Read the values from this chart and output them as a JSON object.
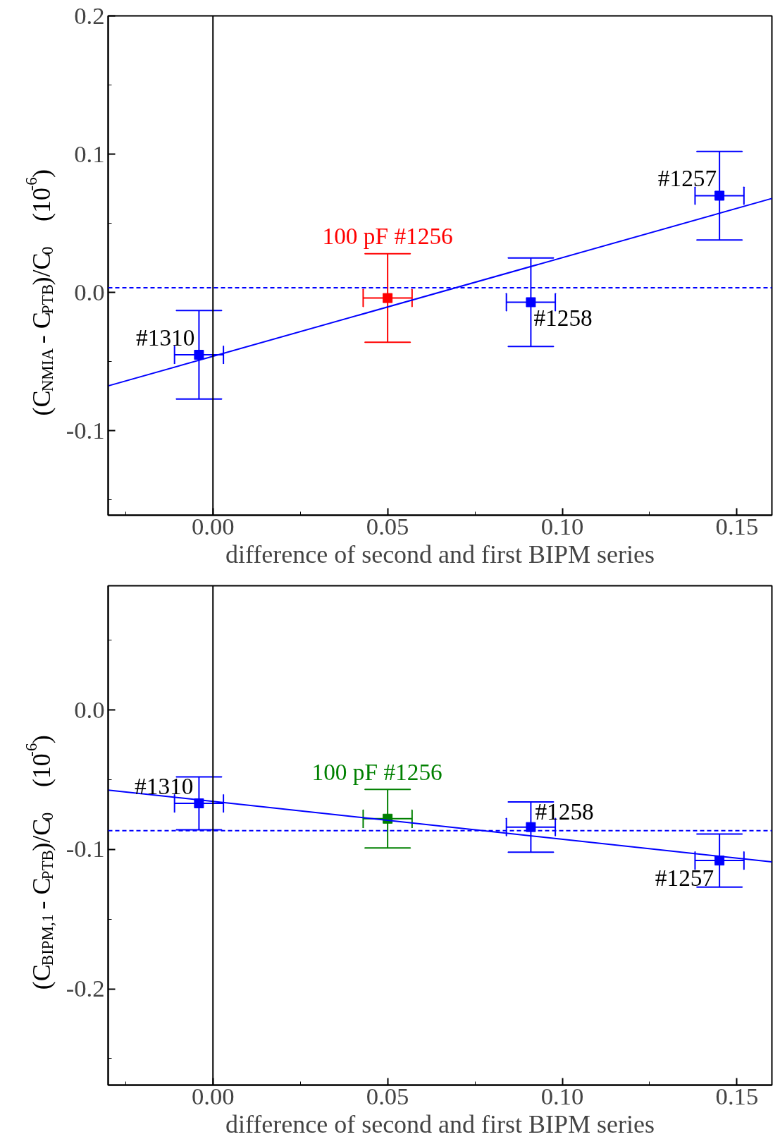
{
  "chart_data": [
    {
      "type": "scatter",
      "xlabel": "difference of second and first BIPM series",
      "ylabel": "(C$_{NMIA}$ - C$_{PTB}$)/C$_{0}$    (10$^{-6}$)",
      "xlim": [
        -0.03,
        0.16
      ],
      "ylim": [
        -0.161,
        0.2
      ],
      "xticks": [
        {
          "value": 0,
          "label": "0.00"
        },
        {
          "value": 0.05,
          "label": "0.05"
        },
        {
          "value": 0.1,
          "label": "0.10"
        },
        {
          "value": 0.15,
          "label": "0.15"
        }
      ],
      "yticks": [
        {
          "value": -0.1,
          "label": "-0.1"
        },
        {
          "value": 0,
          "label": "0.0"
        },
        {
          "value": 0.1,
          "label": "0.1"
        },
        {
          "value": 0.2,
          "label": "0.2"
        }
      ],
      "grid": false,
      "marker": "square",
      "series": [
        {
          "color": "#0000ff",
          "x": [
            -0.004
          ],
          "values": [
            -0.045
          ],
          "errors": [
            0.032
          ],
          "xerrors": [
            0.007
          ]
        },
        {
          "color": "#ff0000",
          "x": [
            0.05
          ],
          "values": [
            -0.004
          ],
          "errors": [
            0.032
          ],
          "xerrors": [
            0.007
          ]
        },
        {
          "color": "#0000ff",
          "x": [
            0.091
          ],
          "values": [
            -0.007
          ],
          "errors": [
            0.032
          ],
          "xerrors": [
            0.007
          ]
        },
        {
          "color": "#0000ff",
          "x": [
            0.145
          ],
          "values": [
            0.07
          ],
          "errors": [
            0.032
          ],
          "xerrors": [
            0.007
          ]
        },
        {
          "type": "line",
          "color": "#0000ff",
          "marker": "none",
          "x": [
            -0.03,
            0.16
          ],
          "values": [
            -0.0675,
            0.068
          ]
        }
      ],
      "annotations": [
        {
          "text": "#1310",
          "x": -0.004,
          "y": -0.045
        },
        {
          "text": "100 pF #1256",
          "x": 0.05,
          "y": -0.004
        },
        {
          "text": "#1258",
          "x": 0.091,
          "y": -0.007
        },
        {
          "text": "#1257",
          "x": 0.145,
          "y": 0.07
        }
      ],
      "ref_lines": [
        {
          "axis": "y",
          "value": 0.0034,
          "color": "#0000ff",
          "line_style": "dashed"
        },
        {
          "axis": "x",
          "value": 0,
          "color": "#000000",
          "line_style": "solid"
        }
      ]
    },
    {
      "type": "scatter",
      "xlabel": "difference of second and first BIPM series",
      "ylabel": "(C$_{BIPM,1}$ - C$_{PTB}$)/C$_{0}$    (10$^{-6}$)",
      "xlim": [
        -0.03,
        0.16
      ],
      "ylim": [
        -0.269,
        0.089
      ],
      "xticks": [
        {
          "value": 0,
          "label": "0.00"
        },
        {
          "value": 0.05,
          "label": "0.05"
        },
        {
          "value": 0.1,
          "label": "0.10"
        },
        {
          "value": 0.15,
          "label": "0.15"
        }
      ],
      "yticks": [
        {
          "value": -0.2,
          "label": "-0.2"
        },
        {
          "value": -0.1,
          "label": "-0.1"
        },
        {
          "value": 0,
          "label": "0.0"
        }
      ],
      "grid": false,
      "marker": "square",
      "series": [
        {
          "color": "#0000ff",
          "x": [
            -0.004
          ],
          "values": [
            -0.067
          ],
          "errors": [
            0.019
          ],
          "xerrors": [
            0.007
          ]
        },
        {
          "color": "#008000",
          "x": [
            0.05
          ],
          "values": [
            -0.078
          ],
          "errors": [
            0.021
          ],
          "xerrors": [
            0.007
          ]
        },
        {
          "color": "#0000ff",
          "x": [
            0.091
          ],
          "values": [
            -0.084
          ],
          "errors": [
            0.018
          ],
          "xerrors": [
            0.007
          ]
        },
        {
          "color": "#0000ff",
          "x": [
            0.145
          ],
          "values": [
            -0.108
          ],
          "errors": [
            0.019
          ],
          "xerrors": [
            0.007
          ]
        },
        {
          "type": "line",
          "color": "#0000ff",
          "marker": "none",
          "x": [
            -0.03,
            0.16
          ],
          "values": [
            -0.0575,
            -0.109
          ]
        }
      ],
      "annotations": [
        {
          "text": "#1310",
          "x": -0.004,
          "y": -0.067
        },
        {
          "text": "100 pF #1256",
          "x": 0.05,
          "y": -0.078
        },
        {
          "text": "#1258",
          "x": 0.091,
          "y": -0.084
        },
        {
          "text": "#1257",
          "x": 0.145,
          "y": -0.108
        }
      ],
      "ref_lines": [
        {
          "axis": "y",
          "value": -0.0866,
          "color": "#0000ff",
          "line_style": "dashed"
        },
        {
          "axis": "x",
          "value": 0,
          "color": "#000000",
          "line_style": "solid"
        }
      ]
    }
  ]
}
